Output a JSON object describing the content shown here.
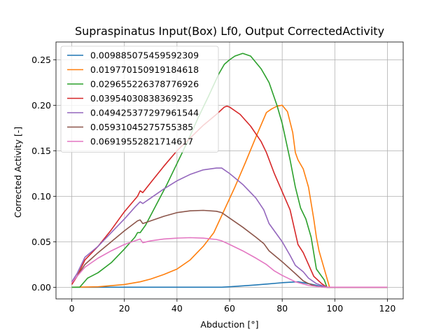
{
  "chart_data": {
    "type": "line",
    "title": "Supraspinatus Input(Box) Lf0, Output CorrectedActivity",
    "xlabel": "Abduction [°]",
    "ylabel": "Corrected Activity [-]",
    "xlim": [
      -6,
      126
    ],
    "ylim": [
      -0.0128,
      0.2695
    ],
    "xticks": [
      0,
      20,
      40,
      60,
      80,
      100,
      120
    ],
    "yticks": [
      0.0,
      0.05,
      0.1,
      0.15,
      0.2,
      0.25
    ],
    "xtick_labels": [
      "0",
      "20",
      "40",
      "60",
      "80",
      "100",
      "120"
    ],
    "ytick_labels": [
      "0.00",
      "0.05",
      "0.10",
      "0.15",
      "0.20",
      "0.25"
    ],
    "grid": true,
    "legend_position": "top-left",
    "series": [
      {
        "name": "0.009885075459592309",
        "color": "#1f77b4",
        "points": [
          [
            0,
            0
          ],
          [
            20,
            0
          ],
          [
            40,
            0
          ],
          [
            57,
            0
          ],
          [
            60,
            0.0005
          ],
          [
            70,
            0.0025
          ],
          [
            80,
            0.005
          ],
          [
            86,
            0.006
          ],
          [
            90,
            0.004
          ],
          [
            94,
            0.0015
          ],
          [
            97,
            0
          ],
          [
            100,
            0
          ],
          [
            120,
            0
          ]
        ]
      },
      {
        "name": "0.019770150919184618",
        "color": "#ff7f0e",
        "points": [
          [
            0,
            0
          ],
          [
            10,
            0.0005
          ],
          [
            20,
            0.003
          ],
          [
            26,
            0.006
          ],
          [
            30,
            0.009
          ],
          [
            35,
            0.014
          ],
          [
            40,
            0.02
          ],
          [
            45,
            0.03
          ],
          [
            50,
            0.045
          ],
          [
            54,
            0.06
          ],
          [
            58,
            0.085
          ],
          [
            62,
            0.11
          ],
          [
            66,
            0.137
          ],
          [
            70,
            0.165
          ],
          [
            74,
            0.192
          ],
          [
            76,
            0.196
          ],
          [
            78,
            0.199
          ],
          [
            80,
            0.2
          ],
          [
            82,
            0.193
          ],
          [
            84,
            0.17
          ],
          [
            85,
            0.148
          ],
          [
            86,
            0.14
          ],
          [
            88,
            0.13
          ],
          [
            90,
            0.11
          ],
          [
            92,
            0.075
          ],
          [
            93,
            0.055
          ],
          [
            94,
            0.04
          ],
          [
            96,
            0.02
          ],
          [
            98,
            0
          ],
          [
            100,
            0
          ],
          [
            120,
            0
          ]
        ]
      },
      {
        "name": "0.029655226378776926",
        "color": "#2ca02c",
        "points": [
          [
            0,
            0
          ],
          [
            3,
            0
          ],
          [
            6,
            0.01
          ],
          [
            10,
            0.016
          ],
          [
            15,
            0.027
          ],
          [
            20,
            0.042
          ],
          [
            24,
            0.055
          ],
          [
            25,
            0.06
          ],
          [
            26,
            0.06
          ],
          [
            28,
            0.068
          ],
          [
            32,
            0.09
          ],
          [
            36,
            0.112
          ],
          [
            40,
            0.136
          ],
          [
            44,
            0.16
          ],
          [
            48,
            0.186
          ],
          [
            52,
            0.21
          ],
          [
            56,
            0.235
          ],
          [
            58,
            0.245
          ],
          [
            60,
            0.25
          ],
          [
            62,
            0.254
          ],
          [
            65,
            0.257
          ],
          [
            68,
            0.254
          ],
          [
            72,
            0.24
          ],
          [
            75,
            0.225
          ],
          [
            78,
            0.2
          ],
          [
            80,
            0.18
          ],
          [
            83,
            0.14
          ],
          [
            85,
            0.11
          ],
          [
            87,
            0.087
          ],
          [
            89,
            0.075
          ],
          [
            91,
            0.055
          ],
          [
            93,
            0.02
          ],
          [
            96,
            0.008
          ],
          [
            97,
            0
          ],
          [
            100,
            0
          ],
          [
            120,
            0
          ]
        ]
      },
      {
        "name": "0.03954030838369235",
        "color": "#d62728",
        "points": [
          [
            0,
            0.003
          ],
          [
            2,
            0.012
          ],
          [
            5,
            0.03
          ],
          [
            10,
            0.045
          ],
          [
            15,
            0.063
          ],
          [
            20,
            0.083
          ],
          [
            25,
            0.1
          ],
          [
            26,
            0.106
          ],
          [
            27,
            0.104
          ],
          [
            30,
            0.115
          ],
          [
            35,
            0.133
          ],
          [
            40,
            0.15
          ],
          [
            45,
            0.164
          ],
          [
            50,
            0.178
          ],
          [
            55,
            0.19
          ],
          [
            58,
            0.198
          ],
          [
            59,
            0.199
          ],
          [
            60,
            0.198
          ],
          [
            64,
            0.19
          ],
          [
            68,
            0.177
          ],
          [
            72,
            0.16
          ],
          [
            74,
            0.148
          ],
          [
            77,
            0.125
          ],
          [
            80,
            0.105
          ],
          [
            83,
            0.085
          ],
          [
            86,
            0.047
          ],
          [
            88,
            0.038
          ],
          [
            90,
            0.025
          ],
          [
            92,
            0.012
          ],
          [
            95,
            0.004
          ],
          [
            97,
            0
          ],
          [
            100,
            0
          ],
          [
            120,
            0
          ]
        ]
      },
      {
        "name": "0.049425377297961544",
        "color": "#9467bd",
        "points": [
          [
            0,
            0.006
          ],
          [
            2,
            0.015
          ],
          [
            5,
            0.033
          ],
          [
            10,
            0.045
          ],
          [
            15,
            0.06
          ],
          [
            20,
            0.075
          ],
          [
            24,
            0.088
          ],
          [
            26,
            0.094
          ],
          [
            27,
            0.092
          ],
          [
            30,
            0.098
          ],
          [
            35,
            0.108
          ],
          [
            40,
            0.117
          ],
          [
            45,
            0.124
          ],
          [
            50,
            0.129
          ],
          [
            55,
            0.131
          ],
          [
            57,
            0.131
          ],
          [
            60,
            0.125
          ],
          [
            65,
            0.113
          ],
          [
            70,
            0.098
          ],
          [
            73,
            0.085
          ],
          [
            75,
            0.07
          ],
          [
            80,
            0.05
          ],
          [
            83,
            0.035
          ],
          [
            85,
            0.024
          ],
          [
            88,
            0.017
          ],
          [
            90,
            0.01
          ],
          [
            93,
            0.004
          ],
          [
            96,
            0.001
          ],
          [
            97,
            0
          ],
          [
            100,
            0
          ],
          [
            120,
            0
          ]
        ]
      },
      {
        "name": "0.05931045275755385",
        "color": "#8c564b",
        "points": [
          [
            0,
            0.005
          ],
          [
            2,
            0.012
          ],
          [
            5,
            0.025
          ],
          [
            10,
            0.038
          ],
          [
            15,
            0.05
          ],
          [
            20,
            0.062
          ],
          [
            25,
            0.073
          ],
          [
            26,
            0.074
          ],
          [
            27,
            0.07
          ],
          [
            30,
            0.073
          ],
          [
            35,
            0.078
          ],
          [
            40,
            0.082
          ],
          [
            45,
            0.084
          ],
          [
            50,
            0.0845
          ],
          [
            55,
            0.0835
          ],
          [
            57,
            0.082
          ],
          [
            60,
            0.076
          ],
          [
            65,
            0.066
          ],
          [
            70,
            0.055
          ],
          [
            73,
            0.048
          ],
          [
            75,
            0.04
          ],
          [
            80,
            0.028
          ],
          [
            85,
            0.015
          ],
          [
            88,
            0.007
          ],
          [
            90,
            0.004
          ],
          [
            93,
            0.001
          ],
          [
            96,
            0
          ],
          [
            100,
            0
          ],
          [
            120,
            0
          ]
        ]
      },
      {
        "name": "0.06919552821714617",
        "color": "#e377c2",
        "points": [
          [
            0,
            0.005
          ],
          [
            2,
            0.012
          ],
          [
            5,
            0.022
          ],
          [
            10,
            0.032
          ],
          [
            15,
            0.04
          ],
          [
            20,
            0.047
          ],
          [
            25,
            0.052
          ],
          [
            26,
            0.053
          ],
          [
            27,
            0.049
          ],
          [
            30,
            0.051
          ],
          [
            35,
            0.053
          ],
          [
            40,
            0.054
          ],
          [
            45,
            0.0545
          ],
          [
            50,
            0.054
          ],
          [
            55,
            0.0525
          ],
          [
            57,
            0.051
          ],
          [
            60,
            0.047
          ],
          [
            65,
            0.04
          ],
          [
            70,
            0.032
          ],
          [
            74,
            0.025
          ],
          [
            77,
            0.018
          ],
          [
            80,
            0.013
          ],
          [
            85,
            0.006
          ],
          [
            90,
            0.002
          ],
          [
            93,
            0.001
          ],
          [
            96,
            0
          ],
          [
            100,
            0
          ],
          [
            120,
            0
          ]
        ]
      }
    ]
  }
}
